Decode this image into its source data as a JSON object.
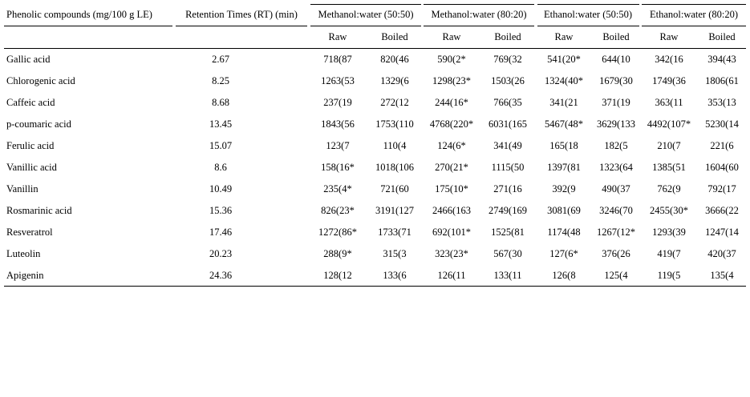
{
  "table": {
    "header": [
      "Phenolic compounds (mg/100 g LE)",
      "Retention Times (RT) (min)",
      "Methanol:water (50:50)",
      "Methanol:water (80:20)",
      "Ethanol:water (50:50)",
      "Ethanol:water (80:20)"
    ],
    "subheader": [
      "Raw",
      "Boiled",
      "Raw",
      "Boiled",
      "Raw",
      "Boiled",
      "Raw",
      "Boiled"
    ],
    "rows": [
      [
        "Gallic acid",
        "2.67",
        "718(87",
        "820(46",
        "590(2*",
        "769(32",
        "541(20*",
        "644(10",
        "342(16",
        "394(43"
      ],
      [
        "Chlorogenic acid",
        "8.25",
        "1263(53",
        "1329(6",
        "1298(23*",
        "1503(26",
        "1324(40*",
        "1679(30",
        "1749(36",
        "1806(61"
      ],
      [
        "Caffeic acid",
        "8.68",
        "237(19",
        "272(12",
        "244(16*",
        "766(35",
        "341(21",
        "371(19",
        "363(11",
        "353(13"
      ],
      [
        "p-coumaric acid",
        "13.45",
        "1843(56",
        "1753(110",
        "4768(220*",
        "6031(165",
        "5467(48*",
        "3629(133",
        "4492(107*",
        "5230(14"
      ],
      [
        "Ferulic acid",
        "15.07",
        "123(7",
        "110(4",
        "124(6*",
        "341(49",
        "165(18",
        "182(5",
        "210(7",
        "221(6"
      ],
      [
        "Vanillic acid",
        "8.6",
        "158(16*",
        "1018(106",
        "270(21*",
        "1115(50",
        "1397(81",
        "1323(64",
        "1385(51",
        "1604(60"
      ],
      [
        "Vanillin",
        "10.49",
        "235(4*",
        "721(60",
        "175(10*",
        "271(16",
        "392(9",
        "490(37",
        "762(9",
        "792(17"
      ],
      [
        "Rosmarinic acid",
        "15.36",
        "826(23*",
        "3191(127",
        "2466(163",
        "2749(169",
        "3081(69",
        "3246(70",
        "2455(30*",
        "3666(22"
      ],
      [
        "Resveratrol",
        "17.46",
        "1272(86*",
        "1733(71",
        "692(101*",
        "1525(81",
        "1174(48",
        "1267(12*",
        "1293(39",
        "1247(14"
      ],
      [
        "Luteolin",
        "20.23",
        "288(9*",
        "315(3",
        "323(23*",
        "567(30",
        "127(6*",
        "376(26",
        "419(7",
        "420(37"
      ],
      [
        "Apigenin",
        "24.36",
        "128(12",
        "133(6",
        "126(11",
        "133(11",
        "126(8",
        "125(4",
        "119(5",
        "135(4"
      ]
    ]
  }
}
